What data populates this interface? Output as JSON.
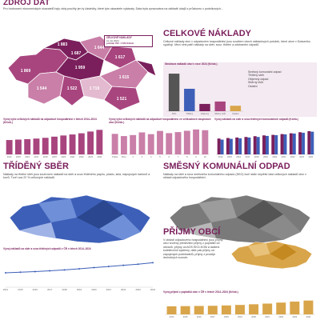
{
  "header": {
    "title": "ZDROJ DAT",
    "intro": "Pro hodnocení ekonomických ukazatelů byly vždy použity jen ty částečky, které tyto ukazatele vykázaly. Data byla zpracována na základě údajů z průzkumu v podnikových..."
  },
  "map_regions": {
    "labels": [
      "1 869",
      "1 883",
      "1 687",
      "1 959",
      "1 644",
      "1 617",
      "1 544",
      "1 522",
      "1 719",
      "1 615",
      "1 521",
      "1 284",
      "1 484",
      "1 579"
    ],
    "colors": {
      "dark": "#7a1f5c",
      "mid": "#a8457f",
      "light": "#c97fa8",
      "pale": "#e3bad0"
    }
  },
  "map_callout": {
    "line1": "CELKOVÉ NÁKLADY",
    "line2": "za rok 2024",
    "line3": "průměr ČR: 1 673 Kč/ob."
  },
  "celkove": {
    "title": "CELKOVÉ NÁKLADY",
    "text": "Celkové náklady obcí v odpadovém hospodářství jsou součtem všech nákladových položek, které obce v Dotazníku vyplňují. Mezi nimi patří náklady na sběr, svoz, třídění a odstranění odpadů."
  },
  "legend_box": {
    "title": "Struktura nákladů obcí v roce 2024 (Kč/ob.)",
    "items": [
      "Směsný komunální odpad",
      "Tříděný sběr",
      "Objemný odpad",
      "Sběrný dvůr",
      "Ostatní"
    ]
  },
  "sections": {
    "trideny_title": "TŘÍDĚNÝ SBĚR",
    "trideny_text": "Náklady na třídění sběr jsou souhrnem nákladů na sběr a svoz tříděného papíru, plastu, skla, nápojových kartonů a kovů. Tvoří cca 22 % celkových nákladů.",
    "smesny_title": "SMĚSNÝ KOMUNÁLNÍ ODPAD",
    "smesny_text": "Náklady na sběr a svoz směsného komunálního odpadu (SKO) tvoří stále největší část celkových nákladů obcí v oblasti odpadového hospodářství.",
    "prijmy_title": "PŘÍJMY OBCÍ",
    "prijmy_text": "V oblasti odpadového hospodářství jsou příjmy obcí tvořeny především příjmy z poplatků od občanů, příjmy od AOS EKO-KOM a dalšími kolektivními systémy, dále pak příjmy od zapojených podnikatelů, příjmy z prodeje druhotných surovin."
  },
  "captions": {
    "c1": "Vývoj výše celkových nákladů na odpadové hospodářství v letech 2014–2024 (Kč/ob.)",
    "c2": "Vývoj výše celkových nákladů na odpadové hospodářství ve velikostních skupinách obcí (Kč/ob.)",
    "c3": "Vývoj nákladů na sběr a svoz tříděných komunálních odpadů (Kč/ob.)",
    "c4": "Vývoj nákladů na sběr a svoz tříděných odpadů v ČR v letech 2014–2024",
    "c5": "Vývoj příjmů z poplatků obcí v ČR v letech 2014–2024 (Kč/ob.)"
  },
  "chart_data": [
    {
      "type": "bar",
      "categories": [
        "2014",
        "2015",
        "2016",
        "2017",
        "2018",
        "2019",
        "2020",
        "2021",
        "2022",
        "2023",
        "2024"
      ],
      "values": [
        980,
        1010,
        1040,
        1080,
        1130,
        1210,
        1290,
        1360,
        1440,
        1560,
        1673
      ],
      "title": "Vývoj výše celkových nákladů na odpadové hospodářství v letech 2014–2024 (Kč/ob.)",
      "ylim": [
        0,
        1800
      ]
    },
    {
      "type": "bar",
      "categories": [
        "Praha",
        "Brno",
        "2",
        "3",
        "4",
        "5",
        "6",
        "7",
        "8",
        "9",
        "10"
      ],
      "values": [
        1400,
        1250,
        1320,
        1500,
        1380,
        1600,
        1450,
        1520,
        1610,
        1700,
        1650
      ],
      "title": "Vývoj výše celkových nákladů na odpadové hospodářství ve velikostních skupinách obcí (Kč/ob.)",
      "ylim": [
        0,
        1800
      ]
    },
    {
      "type": "bar",
      "categories": [
        "2014",
        "2015",
        "2016",
        "2017",
        "2018",
        "2019",
        "2020",
        "2021",
        "2022",
        "2023",
        "2024"
      ],
      "series": [
        {
          "values": [
            300,
            310,
            320,
            330,
            345,
            360,
            370,
            385,
            400,
            420,
            440
          ]
        },
        {
          "values": [
            280,
            295,
            305,
            320,
            330,
            350,
            365,
            380,
            395,
            410,
            430
          ]
        }
      ],
      "title": "Vývoj nákladů na sběr a svoz tříděných komunálních odpadů (Kč/ob.)",
      "ylim": [
        0,
        500
      ]
    },
    {
      "type": "line",
      "categories": [
        "2014",
        "2015",
        "2016",
        "2017",
        "2018",
        "2019",
        "2020",
        "2021",
        "2022",
        "2023",
        "2024"
      ],
      "values": [
        250,
        260,
        270,
        285,
        300,
        320,
        340,
        360,
        380,
        400,
        425
      ],
      "title": "Vývoj nákladů na sběr a svoz tříděných odpadů v ČR v letech 2014–2024",
      "ylim": [
        0,
        500
      ]
    },
    {
      "type": "bar",
      "categories": [
        "2014",
        "2015",
        "2016",
        "2017",
        "2018",
        "2019",
        "2020",
        "2021",
        "2022",
        "2023",
        "2024"
      ],
      "values": [
        480,
        490,
        500,
        510,
        530,
        560,
        600,
        640,
        700,
        760,
        820
      ],
      "title": "Vývoj příjmů z poplatků obcí v ČR v letech 2014–2024 (Kč/ob.)",
      "ylim": [
        0,
        900
      ]
    },
    {
      "type": "bar",
      "categories": [
        "SKO",
        "Tříděný",
        "Objemný",
        "Sběrný dvůr",
        "Ostatní"
      ],
      "values": [
        620,
        370,
        120,
        160,
        90
      ],
      "title": "Struktura nákladů obcí v roce 2024 (Kč/ob.)",
      "ylim": [
        0,
        700
      ]
    }
  ]
}
